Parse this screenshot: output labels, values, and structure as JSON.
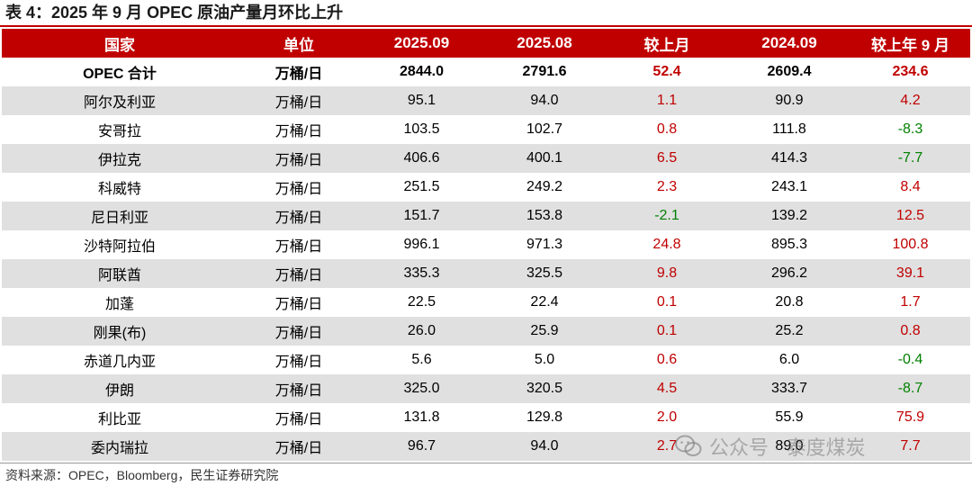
{
  "title": "表 4：2025 年 9 月 OPEC 原油产量月环比上升",
  "table": {
    "headers": [
      "国家",
      "单位",
      "2025.09",
      "2025.08",
      "较上月",
      "2024.09",
      "较上年 9 月"
    ],
    "rows": [
      [
        "OPEC 合计",
        "万桶/日",
        "2844.0",
        "2791.6",
        "52.4",
        "2609.4",
        "234.6"
      ],
      [
        "阿尔及利亚",
        "万桶/日",
        "95.1",
        "94.0",
        "1.1",
        "90.9",
        "4.2"
      ],
      [
        "安哥拉",
        "万桶/日",
        "103.5",
        "102.7",
        "0.8",
        "111.8",
        "-8.3"
      ],
      [
        "伊拉克",
        "万桶/日",
        "406.6",
        "400.1",
        "6.5",
        "414.3",
        "-7.7"
      ],
      [
        "科威特",
        "万桶/日",
        "251.5",
        "249.2",
        "2.3",
        "243.1",
        "8.4"
      ],
      [
        "尼日利亚",
        "万桶/日",
        "151.7",
        "153.8",
        "-2.1",
        "139.2",
        "12.5"
      ],
      [
        "沙特阿拉伯",
        "万桶/日",
        "996.1",
        "971.3",
        "24.8",
        "895.3",
        "100.8"
      ],
      [
        "阿联酋",
        "万桶/日",
        "335.3",
        "325.5",
        "9.8",
        "296.2",
        "39.1"
      ],
      [
        "加蓬",
        "万桶/日",
        "22.5",
        "22.4",
        "0.1",
        "20.8",
        "1.7"
      ],
      [
        "刚果(布)",
        "万桶/日",
        "26.0",
        "25.9",
        "0.1",
        "25.2",
        "0.8"
      ],
      [
        "赤道几内亚",
        "万桶/日",
        "5.6",
        "5.0",
        "0.6",
        "6.0",
        "-0.4"
      ],
      [
        "伊朗",
        "万桶/日",
        "325.0",
        "320.5",
        "4.5",
        "333.7",
        "-8.7"
      ],
      [
        "利比亚",
        "万桶/日",
        "131.8",
        "129.8",
        "2.0",
        "55.9",
        "75.9"
      ],
      [
        "委内瑞拉",
        "万桶/日",
        "96.7",
        "94.0",
        "2.7",
        "89.0",
        "7.7"
      ]
    ]
  },
  "watermark": "公众号 · 泰度煤炭",
  "source": "资料来源：OPEC，Bloomberg，民生证券研究院",
  "colors": {
    "header_bg": "#c00000",
    "positive": "#c00000",
    "negative": "#008000",
    "stripe": "#e0e0e0"
  }
}
